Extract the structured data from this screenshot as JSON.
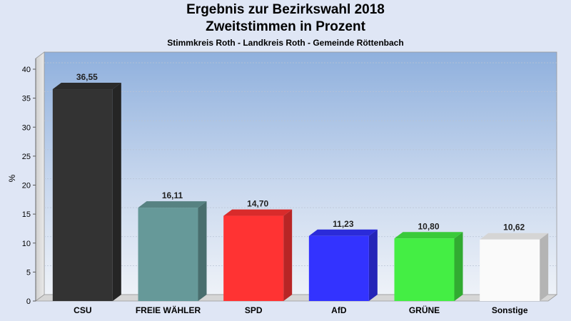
{
  "chart_data": {
    "type": "bar",
    "title": "Ergebnis zur Bezirkswahl 2018",
    "subtitle": "Zweitstimmen in Prozent",
    "caption": "Stimmkreis Roth - Landkreis Roth - Gemeinde Röttenbach",
    "ylabel": "%",
    "xlabel": "",
    "ylim": [
      0,
      40
    ],
    "yticks": [
      0,
      5,
      10,
      15,
      20,
      25,
      30,
      35,
      40
    ],
    "grid": true,
    "categories": [
      "CSU",
      "FREIE WÄHLER",
      "SPD",
      "AfD",
      "GRÜNE",
      "Sonstige"
    ],
    "values": [
      36.55,
      16.11,
      14.7,
      11.23,
      10.8,
      10.62
    ],
    "value_labels": [
      "36,55",
      "16,11",
      "14,70",
      "11,23",
      "10,80",
      "10,62"
    ],
    "colors": [
      "#333333",
      "#669999",
      "#ff3333",
      "#3333ff",
      "#44ee44",
      "#fafafa"
    ]
  }
}
